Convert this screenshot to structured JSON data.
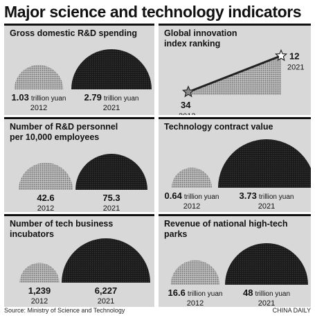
{
  "title": "Major science and technology indicators",
  "source": "Source: Ministry of Science and Technology",
  "credit": "CHINA DAILY",
  "chart_data": [
    {
      "type": "semicircle-comparison",
      "title": "Gross domestic R&D spending",
      "unit": "trillion yuan",
      "categories": [
        "2012",
        "2021"
      ],
      "values": [
        1.03,
        2.79
      ],
      "value_labels": [
        "1.03",
        "2.79"
      ]
    },
    {
      "type": "area",
      "title": "Global innovation\nindex ranking",
      "x": [
        "2012",
        "2021"
      ],
      "values": [
        34,
        12
      ],
      "value_labels": [
        "34",
        "12"
      ]
    },
    {
      "type": "semicircle-comparison",
      "title": "Number of R&D personnel\nper 10,000 employees",
      "unit": "",
      "categories": [
        "2012",
        "2021"
      ],
      "values": [
        42.6,
        75.3
      ],
      "value_labels": [
        "42.6",
        "75.3"
      ]
    },
    {
      "type": "semicircle-comparison",
      "title": "Technology contract value",
      "unit": "trillion yuan",
      "categories": [
        "2012",
        "2021"
      ],
      "values": [
        0.64,
        3.73
      ],
      "value_labels": [
        "0.64",
        "3.73"
      ]
    },
    {
      "type": "semicircle-comparison",
      "title": "Number of tech business incubators",
      "unit": "",
      "categories": [
        "2012",
        "2021"
      ],
      "values": [
        1239,
        6227
      ],
      "value_labels": [
        "1,239",
        "6,227"
      ]
    },
    {
      "type": "semicircle-comparison",
      "title": "Revenue of national high-tech parks",
      "unit": "trillion yuan",
      "categories": [
        "2012",
        "2021"
      ],
      "values": [
        16.6,
        48
      ],
      "value_labels": [
        "16.6",
        "48"
      ]
    }
  ]
}
